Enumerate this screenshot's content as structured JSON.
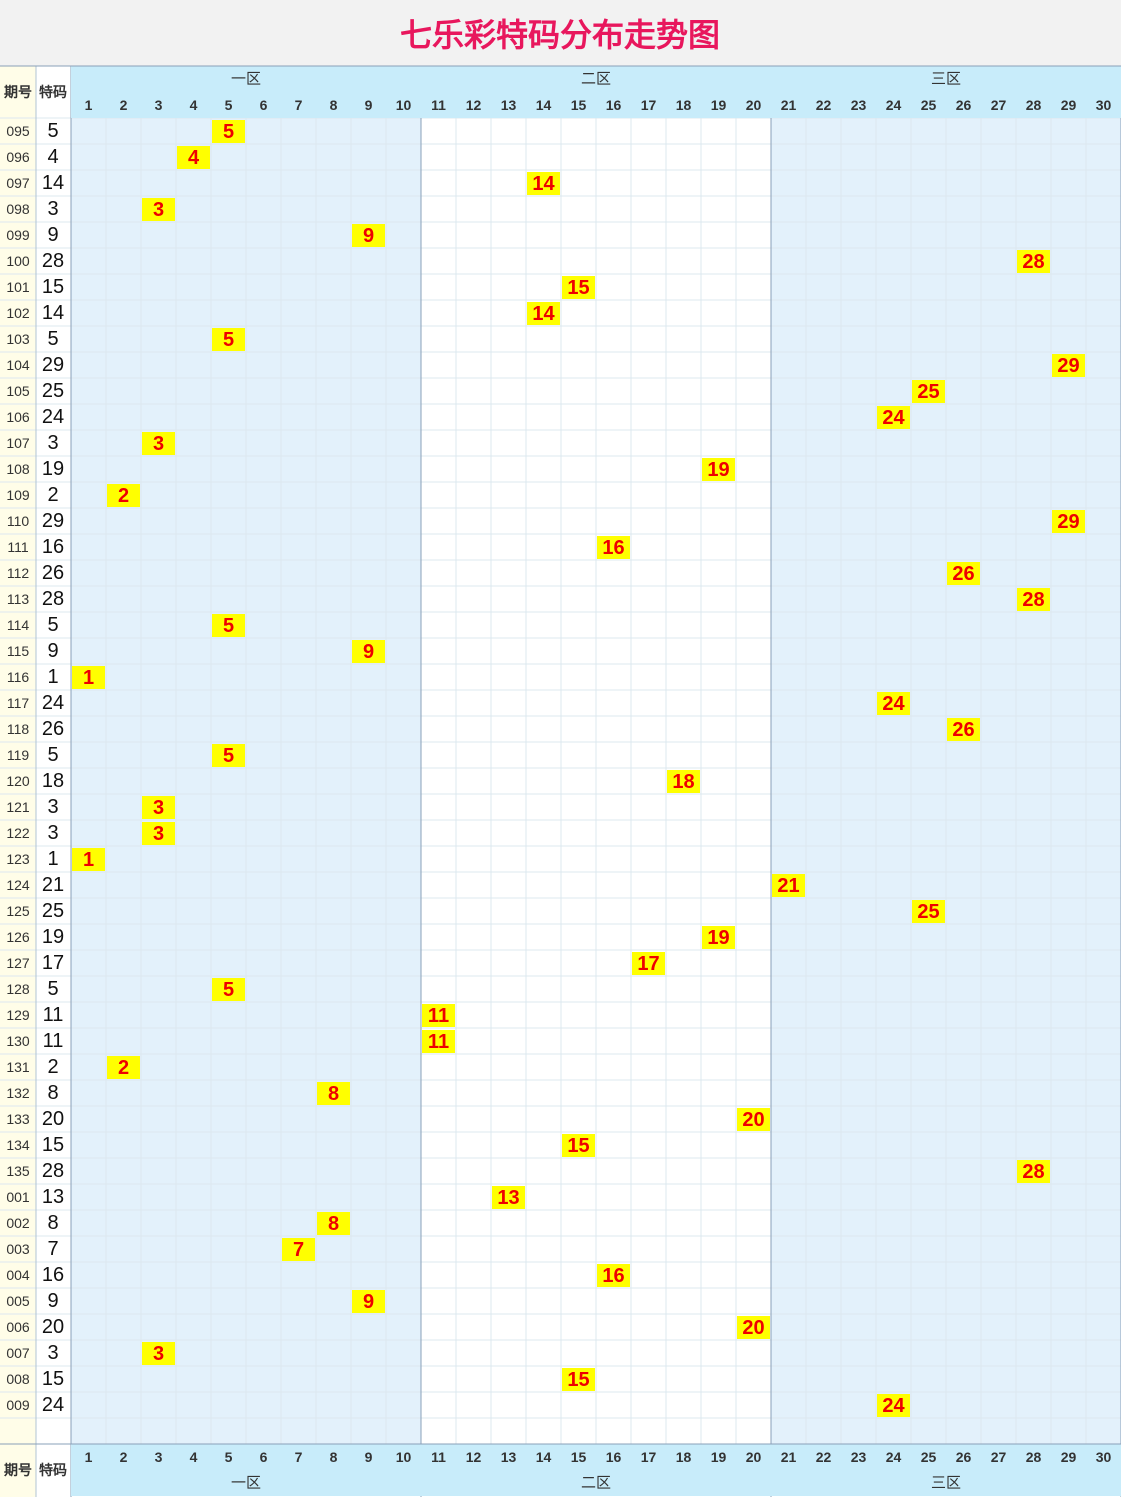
{
  "title": "七乐彩特码分布走势图",
  "header": {
    "period": "期号",
    "code": "特码"
  },
  "zones": [
    "一区",
    "二区",
    "三区"
  ],
  "columns": [
    1,
    2,
    3,
    4,
    5,
    6,
    7,
    8,
    9,
    10,
    11,
    12,
    13,
    14,
    15,
    16,
    17,
    18,
    19,
    20,
    21,
    22,
    23,
    24,
    25,
    26,
    27,
    28,
    29,
    30
  ],
  "rows": [
    {
      "period": "095",
      "code": 5
    },
    {
      "period": "096",
      "code": 4
    },
    {
      "period": "097",
      "code": 14
    },
    {
      "period": "098",
      "code": 3
    },
    {
      "period": "099",
      "code": 9
    },
    {
      "period": "100",
      "code": 28
    },
    {
      "period": "101",
      "code": 15
    },
    {
      "period": "102",
      "code": 14
    },
    {
      "period": "103",
      "code": 5
    },
    {
      "period": "104",
      "code": 29
    },
    {
      "period": "105",
      "code": 25
    },
    {
      "period": "106",
      "code": 24
    },
    {
      "period": "107",
      "code": 3
    },
    {
      "period": "108",
      "code": 19
    },
    {
      "period": "109",
      "code": 2
    },
    {
      "period": "110",
      "code": 29
    },
    {
      "period": "111",
      "code": 16
    },
    {
      "period": "112",
      "code": 26
    },
    {
      "period": "113",
      "code": 28
    },
    {
      "period": "114",
      "code": 5
    },
    {
      "period": "115",
      "code": 9
    },
    {
      "period": "116",
      "code": 1
    },
    {
      "period": "117",
      "code": 24
    },
    {
      "period": "118",
      "code": 26
    },
    {
      "period": "119",
      "code": 5
    },
    {
      "period": "120",
      "code": 18
    },
    {
      "period": "121",
      "code": 3
    },
    {
      "period": "122",
      "code": 3
    },
    {
      "period": "123",
      "code": 1
    },
    {
      "period": "124",
      "code": 21
    },
    {
      "period": "125",
      "code": 25
    },
    {
      "period": "126",
      "code": 19
    },
    {
      "period": "127",
      "code": 17
    },
    {
      "period": "128",
      "code": 5
    },
    {
      "period": "129",
      "code": 11
    },
    {
      "period": "130",
      "code": 11
    },
    {
      "period": "131",
      "code": 2
    },
    {
      "period": "132",
      "code": 8
    },
    {
      "period": "133",
      "code": 20
    },
    {
      "period": "134",
      "code": 15
    },
    {
      "period": "135",
      "code": 28
    },
    {
      "period": "001",
      "code": 13
    },
    {
      "period": "002",
      "code": 8
    },
    {
      "period": "003",
      "code": 7
    },
    {
      "period": "004",
      "code": 16
    },
    {
      "period": "005",
      "code": 9
    },
    {
      "period": "006",
      "code": 20
    },
    {
      "period": "007",
      "code": 3
    },
    {
      "period": "008",
      "code": 15
    },
    {
      "period": "009",
      "code": 24
    }
  ]
}
